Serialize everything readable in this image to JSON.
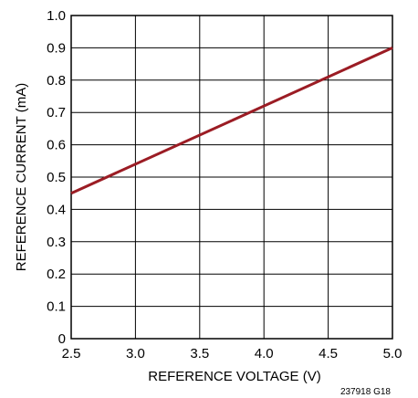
{
  "chart_data": {
    "type": "line",
    "title": "",
    "xlabel": "REFERENCE VOLTAGE (V)",
    "ylabel": "REFERENCE CURRENT (mA)",
    "xlim": [
      2.5,
      5.0
    ],
    "ylim": [
      0,
      1.0
    ],
    "x_ticks": [
      "2.5",
      "3.0",
      "3.5",
      "4.0",
      "4.5",
      "5.0"
    ],
    "y_ticks": [
      "0",
      "0.1",
      "0.2",
      "0.3",
      "0.4",
      "0.5",
      "0.6",
      "0.7",
      "0.8",
      "0.9",
      "1.0"
    ],
    "grid": true,
    "line_color": "#9b1c24",
    "series": [
      {
        "x": [
          2.5,
          5.0
        ],
        "y": [
          0.45,
          0.9
        ]
      }
    ]
  },
  "figure_code": "237918 G18"
}
